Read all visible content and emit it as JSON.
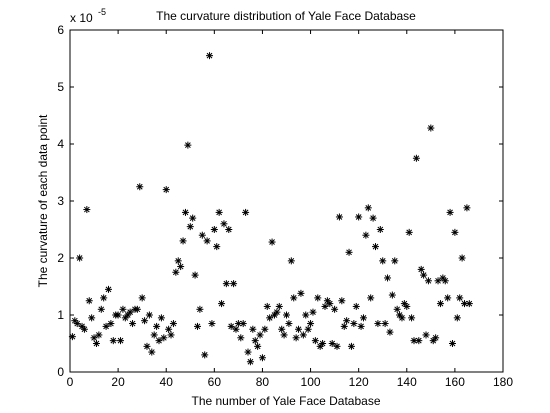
{
  "chart_data": {
    "type": "scatter",
    "title": "The curvature distribution of Yale Face Database",
    "x_label": "The number of Yale Face Database",
    "y_label": "The curvature of each data point",
    "y_multiplier": {
      "base": "x 10",
      "exponent": "-5"
    },
    "color": "#000000",
    "marker": "*",
    "xlim": [
      0,
      180
    ],
    "xticks": [
      0,
      20,
      40,
      60,
      80,
      100,
      120,
      140,
      160,
      180
    ],
    "ylim": [
      0,
      6
    ],
    "yticks": [
      0,
      1,
      2,
      3,
      4,
      5,
      6
    ],
    "grid": false,
    "x": [
      1,
      2,
      3,
      4,
      5,
      6,
      7,
      8,
      9,
      10,
      11,
      12,
      13,
      14,
      15,
      16,
      17,
      18,
      19,
      20,
      21,
      22,
      23,
      24,
      25,
      26,
      27,
      28,
      29,
      30,
      31,
      32,
      33,
      34,
      35,
      36,
      37,
      38,
      39,
      40,
      41,
      42,
      43,
      44,
      45,
      46,
      47,
      48,
      49,
      50,
      51,
      52,
      53,
      54,
      55,
      56,
      57,
      58,
      59,
      60,
      61,
      62,
      63,
      64,
      65,
      66,
      67,
      68,
      69,
      70,
      71,
      72,
      73,
      74,
      75,
      76,
      77,
      78,
      79,
      80,
      81,
      82,
      83,
      84,
      85,
      86,
      87,
      88,
      89,
      90,
      91,
      92,
      93,
      94,
      95,
      96,
      97,
      98,
      99,
      100,
      101,
      102,
      103,
      104,
      105,
      106,
      107,
      108,
      109,
      110,
      111,
      112,
      113,
      114,
      115,
      116,
      117,
      118,
      119,
      120,
      121,
      122,
      123,
      124,
      125,
      126,
      127,
      128,
      129,
      130,
      131,
      132,
      133,
      134,
      135,
      136,
      137,
      138,
      139,
      140,
      141,
      142,
      143,
      144,
      145,
      146,
      147,
      148,
      149,
      150,
      151,
      152,
      153,
      154,
      155,
      156,
      157,
      158,
      159,
      160,
      161,
      162,
      163,
      164,
      165,
      166
    ],
    "values": [
      0.62,
      0.9,
      0.85,
      2.0,
      0.8,
      0.75,
      2.85,
      1.25,
      0.95,
      0.6,
      0.5,
      0.65,
      1.1,
      1.3,
      0.8,
      1.45,
      0.85,
      0.55,
      1.0,
      1.0,
      0.55,
      1.1,
      0.95,
      1.0,
      1.05,
      0.85,
      1.1,
      1.1,
      3.25,
      1.3,
      0.9,
      0.45,
      1.0,
      0.35,
      0.65,
      0.8,
      0.55,
      0.95,
      0.6,
      3.2,
      0.75,
      0.65,
      0.85,
      1.75,
      1.95,
      1.85,
      2.3,
      2.8,
      3.98,
      2.55,
      2.7,
      1.7,
      0.8,
      1.1,
      2.4,
      0.3,
      2.3,
      5.55,
      0.85,
      2.5,
      2.2,
      2.8,
      1.2,
      2.6,
      1.55,
      2.5,
      0.8,
      1.55,
      0.75,
      0.85,
      0.6,
      0.85,
      2.8,
      0.35,
      0.18,
      0.75,
      0.55,
      0.45,
      0.65,
      0.25,
      0.75,
      1.15,
      0.95,
      2.28,
      1.0,
      1.05,
      1.15,
      0.75,
      0.65,
      1.0,
      0.85,
      1.95,
      1.3,
      0.6,
      0.75,
      1.38,
      0.65,
      1.0,
      0.75,
      0.85,
      1.05,
      0.55,
      1.3,
      0.45,
      0.5,
      1.15,
      1.25,
      1.2,
      0.5,
      1.1,
      0.45,
      2.72,
      1.25,
      0.8,
      0.9,
      2.1,
      0.45,
      0.85,
      1.15,
      2.72,
      0.8,
      0.95,
      2.4,
      2.88,
      1.3,
      2.7,
      2.2,
      0.85,
      2.5,
      1.95,
      0.85,
      1.65,
      0.7,
      1.35,
      1.95,
      1.1,
      1.0,
      0.95,
      1.2,
      1.15,
      2.45,
      0.95,
      0.55,
      3.75,
      0.55,
      1.8,
      1.7,
      0.65,
      1.6,
      4.28,
      0.55,
      0.6,
      1.6,
      1.2,
      1.65,
      1.6,
      1.3,
      2.8,
      0.5,
      2.45,
      0.95,
      1.3,
      2.0,
      1.2,
      2.88,
      1.2
    ]
  }
}
